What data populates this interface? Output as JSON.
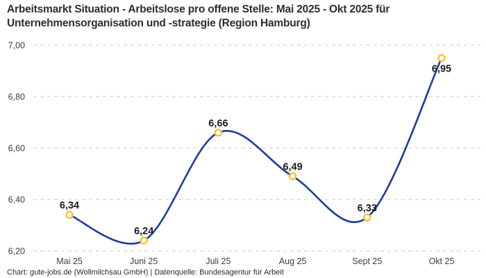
{
  "title": "Arbeitsmarkt Situation - Arbeitslose pro offene Stelle: Mai 2025 - Okt 2025 für Unternehmensorganisation und -strategie (Region Hamburg)",
  "footer": "Chart: gute-jobs.de (Wollmilchsau GmbH) | Datenquelle: Bundesagentur für Arbeit",
  "chart_data": {
    "type": "line",
    "title": "Arbeitsmarkt Situation - Arbeitslose pro offene Stelle: Mai 2025 - Okt 2025 für Unternehmensorganisation und -strategie (Region Hamburg)",
    "categories": [
      "Mai 25",
      "Juni 25",
      "Juli 25",
      "Aug 25",
      "Sept 25",
      "Okt 25"
    ],
    "values": [
      6.34,
      6.24,
      6.66,
      6.49,
      6.33,
      6.95
    ],
    "point_labels": [
      "6,34",
      "6,24",
      "6,66",
      "6,49",
      "6,33",
      "6,95"
    ],
    "point_label_positions": [
      "above",
      "above",
      "above",
      "above",
      "above",
      "below"
    ],
    "yticks": [
      7.0,
      6.8,
      6.6,
      6.4,
      6.2
    ],
    "ytick_labels": [
      "7,00",
      "6,80",
      "6,60",
      "6,40",
      "6,20"
    ],
    "ylim": [
      6.2,
      7.0
    ],
    "xlabel": "",
    "ylabel": "",
    "legend": "none",
    "grid": "dashed-horizontal",
    "line_color": "#1e3a9f",
    "marker_color": "#f9c22e",
    "marker_fill": "#ffffff",
    "grid_color": "#cbcbcb",
    "source_label": "Chart: gute-jobs.de (Wollmilchsau GmbH) | Datenquelle: Bundesagentur für Arbeit"
  }
}
